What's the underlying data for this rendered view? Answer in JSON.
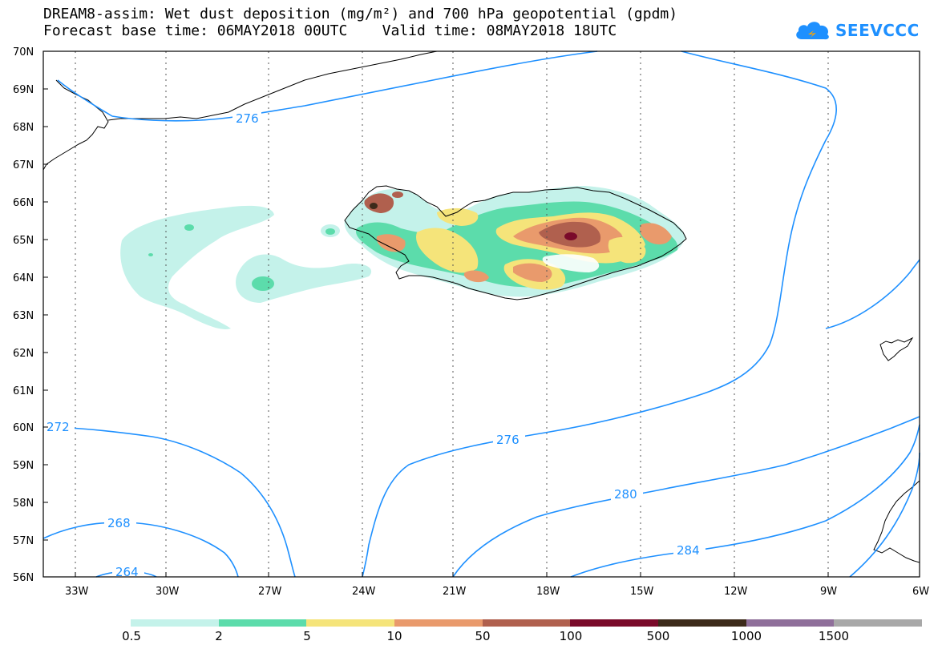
{
  "header": {
    "title_line1": "DREAM8-assim: Wet dust deposition (mg/m²) and 700 hPa geopotential (gpdm)",
    "title_line2": "Forecast base time: 06MAY2018 00UTC    Valid time: 08MAY2018 18UTC",
    "logo_text": "SEEVCCC"
  },
  "map": {
    "lat_labels": [
      "70N",
      "69N",
      "68N",
      "67N",
      "66N",
      "65N",
      "64N",
      "63N",
      "62N",
      "61N",
      "60N",
      "59N",
      "58N",
      "57N",
      "56N"
    ],
    "lon_labels": [
      "33W",
      "30W",
      "27W",
      "24W",
      "21W",
      "18W",
      "15W",
      "12W",
      "9W",
      "6W"
    ],
    "contour_labels": [
      "276",
      "272",
      "276",
      "280",
      "284",
      "268",
      "264"
    ],
    "colors": {
      "contour": "#1e90ff",
      "coast": "#000000"
    }
  },
  "legend": {
    "labels": [
      "0.5",
      "2",
      "5",
      "10",
      "50",
      "100",
      "500",
      "1000",
      "1500"
    ],
    "colors": [
      "#c4f2ea",
      "#5cdcab",
      "#f5e47a",
      "#e99a6c",
      "#b0604e",
      "#7a0a2a",
      "#3c2a1a",
      "#8f6f9a",
      "#a8a8a8"
    ]
  }
}
